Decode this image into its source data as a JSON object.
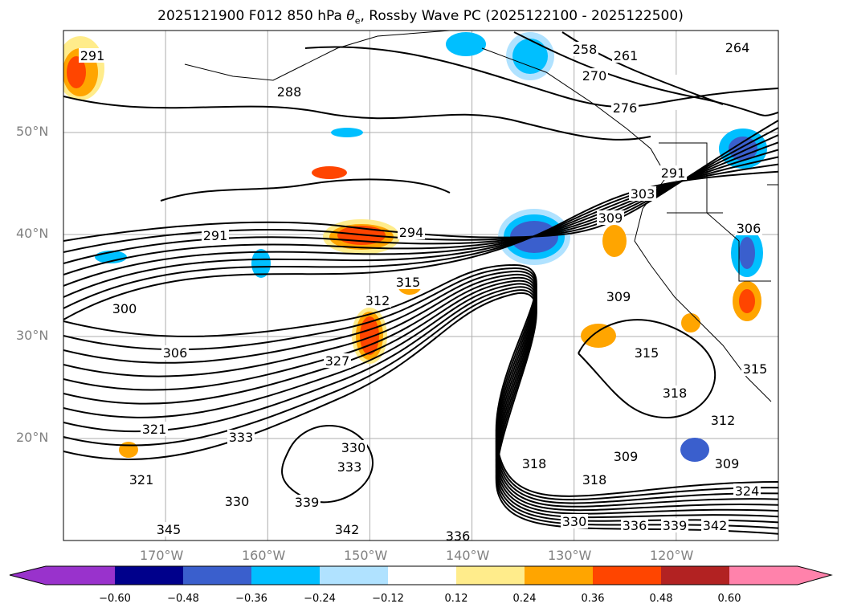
{
  "title": {
    "main": "2025121900 F012 850 hPa ",
    "theta": "θ",
    "sub": "e",
    "rest": ", Rossby Wave PC (2025122100 - 2025122500)"
  },
  "map": {
    "extent": {
      "lon": [
        -180,
        -110
      ],
      "lat": [
        10,
        60
      ]
    },
    "lat_ticks": [
      "20°N",
      "30°N",
      "40°N",
      "50°N"
    ],
    "lon_ticks": [
      "170°W",
      "160°W",
      "150°W",
      "140°W",
      "130°W",
      "120°W"
    ],
    "contour_labels": [
      "291",
      "288",
      "258",
      "261",
      "264",
      "270",
      "276",
      "291",
      "303",
      "309",
      "306",
      "291",
      "294",
      "300",
      "306",
      "312",
      "315",
      "327",
      "321",
      "309",
      "315",
      "318",
      "315",
      "312",
      "309",
      "321",
      "333",
      "330",
      "333",
      "336",
      "330",
      "339",
      "345",
      "342",
      "318",
      "309",
      "318",
      "324",
      "330",
      "336",
      "339",
      "342"
    ]
  },
  "colorbar": {
    "ticks": [
      "−0.60",
      "−0.48",
      "−0.36",
      "−0.24",
      "−0.12",
      "0.12",
      "0.24",
      "0.36",
      "0.48",
      "0.60"
    ],
    "colors": [
      "#9932cc",
      "#00008b",
      "#3a5fcd",
      "#00bfff",
      "#b0e2ff",
      "#ffffff",
      "#ffec8b",
      "#ffa500",
      "#ff4500",
      "#b22222",
      "#ff82ab"
    ]
  }
}
